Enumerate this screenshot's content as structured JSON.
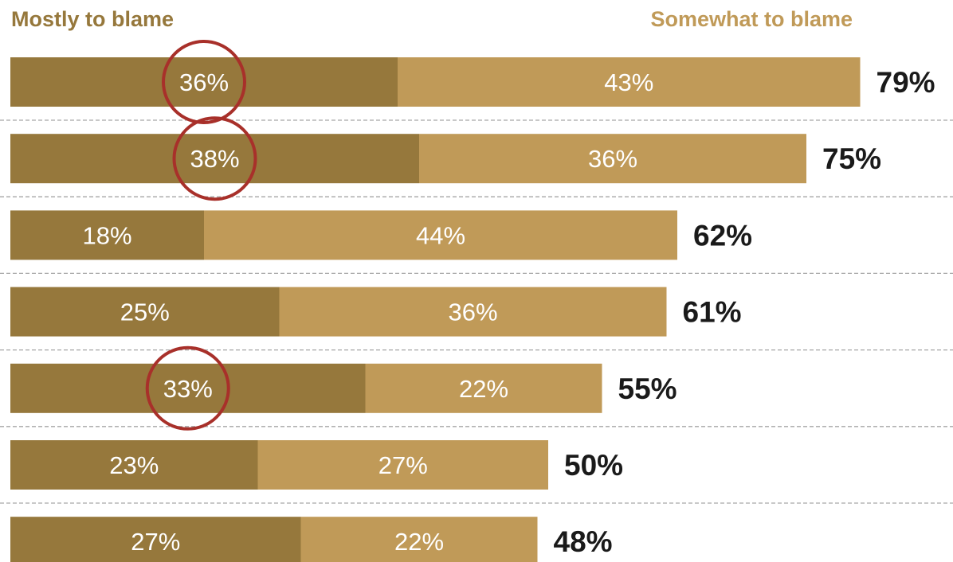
{
  "chart_data": {
    "type": "bar",
    "orientation": "horizontal",
    "stacked": true,
    "series": [
      {
        "name": "Mostly to blame",
        "color": "#96783c",
        "values": [
          36,
          38,
          18,
          25,
          33,
          23,
          27
        ]
      },
      {
        "name": "Somewhat to blame",
        "color": "#c09a58",
        "values": [
          43,
          36,
          44,
          36,
          22,
          27,
          22
        ]
      }
    ],
    "totals": [
      "79%",
      "75%",
      "62%",
      "61%",
      "55%",
      "50%",
      "48%"
    ],
    "highlighted_rows": [
      0,
      1,
      4
    ],
    "highlight_color": "#a8302a",
    "grid": "dashed separators between rows",
    "legend_position": "top"
  }
}
